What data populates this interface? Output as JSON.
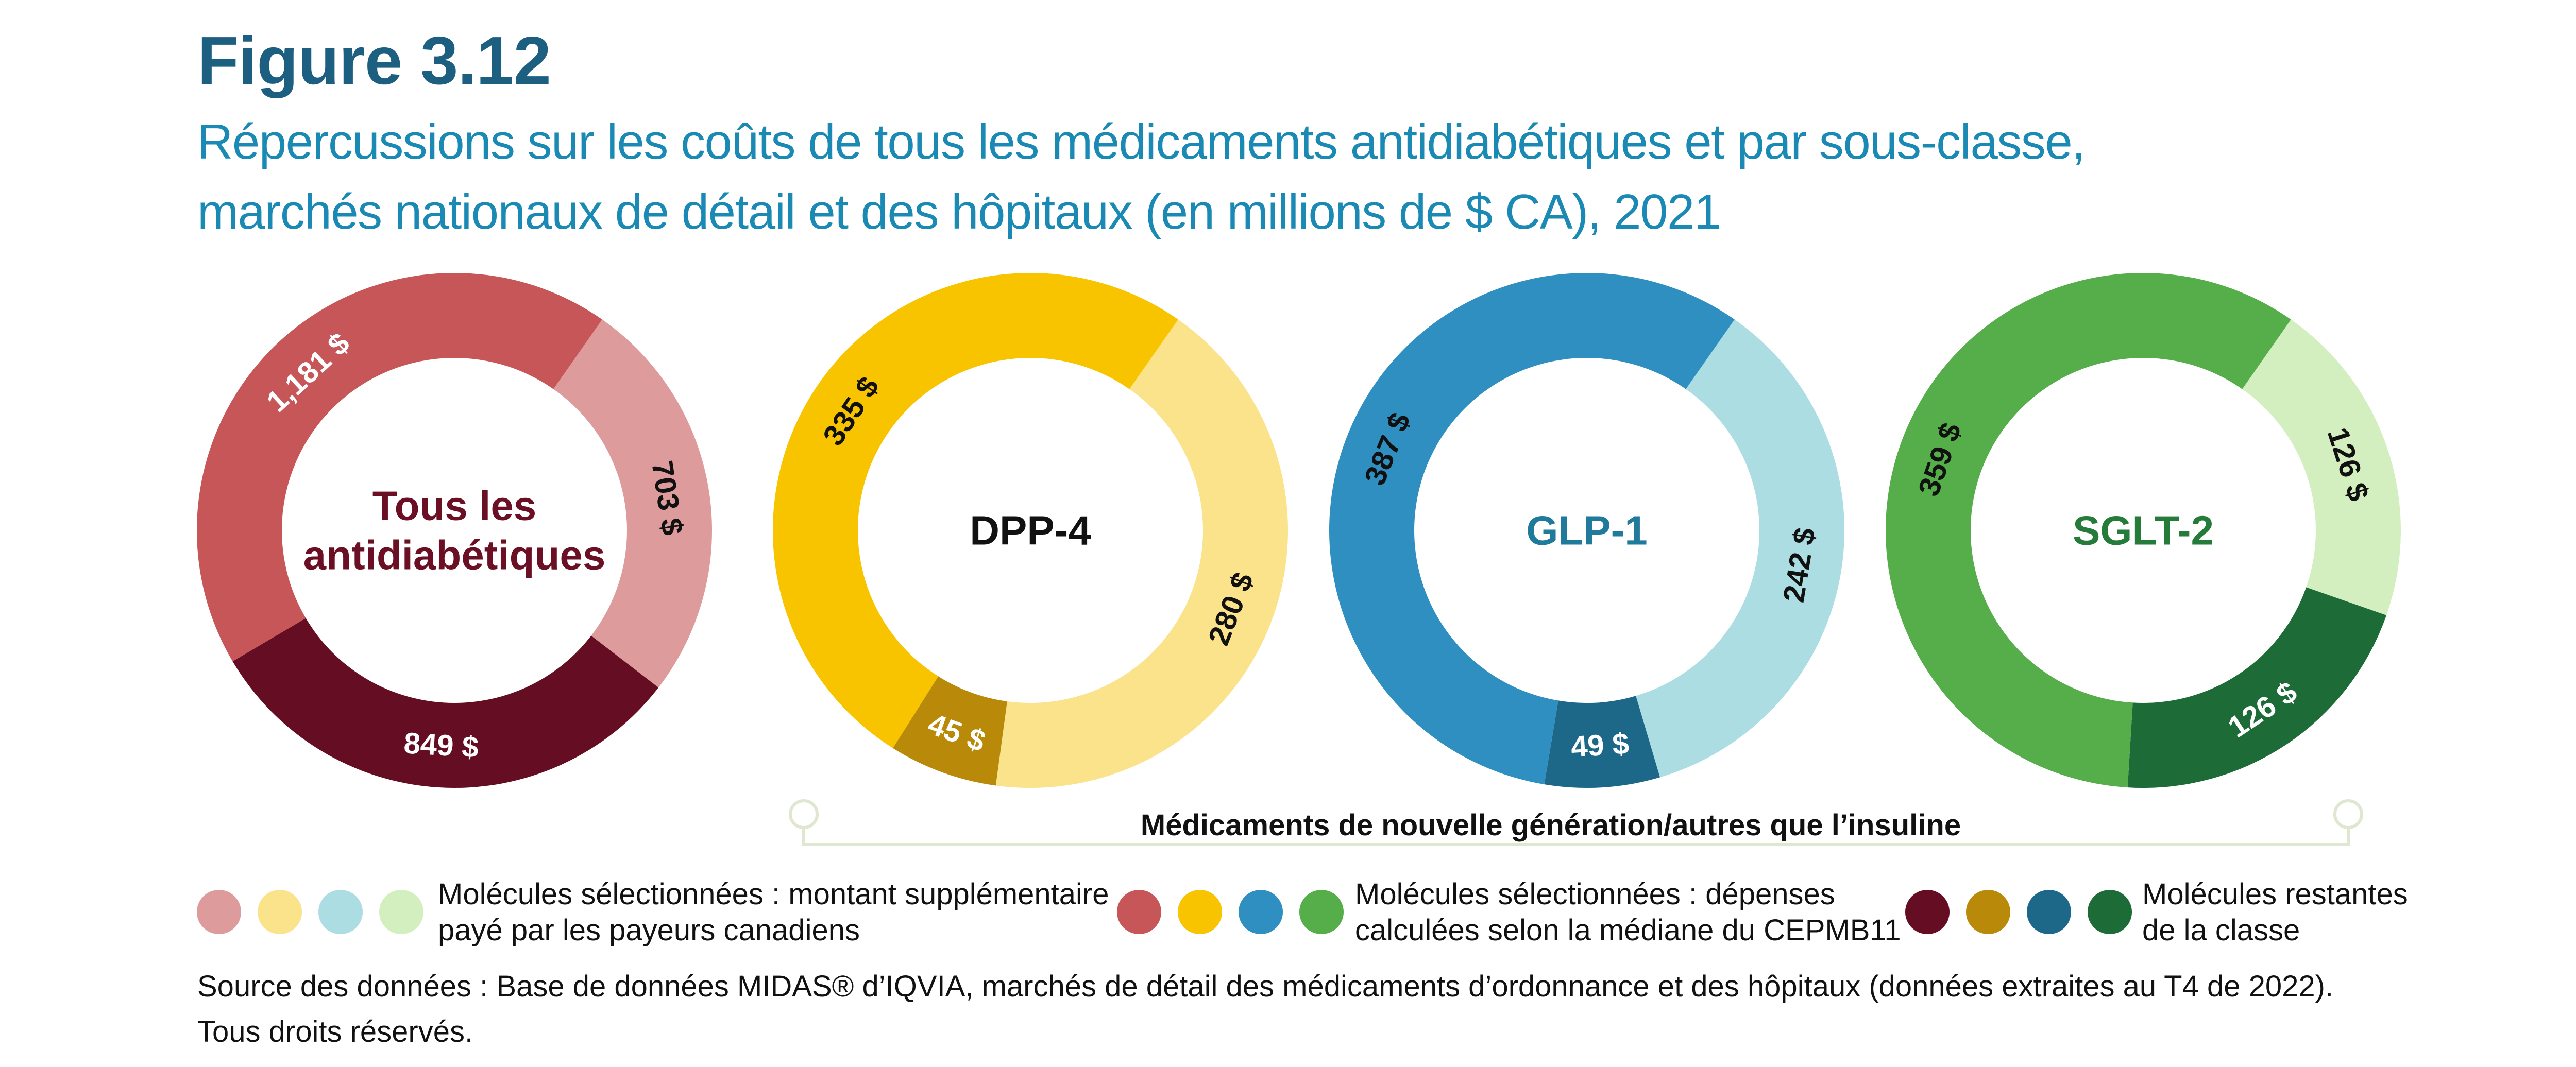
{
  "figure": {
    "label": "Figure 3.12",
    "title_line1": "Répercussions sur les coûts de tous les médicaments antidiabétiques et par sous-classe,",
    "title_line2": "marchés nationaux de détail et des hôpitaux (en millions de $ CA), 2021"
  },
  "chart_data": [
    {
      "type": "donut",
      "center_label": [
        "Tous les",
        "antidiabétiques"
      ],
      "center_color": "#6b0f24",
      "slices": [
        {
          "label": "703 $",
          "value": 703,
          "category": "supplementaire",
          "color": "#dd9b9b"
        },
        {
          "label": "849 $",
          "value": 849,
          "category": "restantes",
          "color": "#650d22"
        },
        {
          "label": "1,181 $",
          "value": 1181,
          "category": "mediane",
          "color": "#c75659"
        }
      ]
    },
    {
      "type": "donut",
      "center_label": [
        "DPP-4"
      ],
      "center_color": "#111111",
      "slices": [
        {
          "label": "280 $",
          "value": 280,
          "category": "supplementaire",
          "color": "#fbe38c"
        },
        {
          "label": "45 $",
          "value": 45,
          "category": "restantes",
          "color": "#b98a0a"
        },
        {
          "label": "335 $",
          "value": 335,
          "category": "mediane",
          "color": "#f8c400"
        }
      ]
    },
    {
      "type": "donut",
      "center_label": [
        "GLP-1"
      ],
      "center_color": "#1f7a9c",
      "slices": [
        {
          "label": "242 $",
          "value": 242,
          "category": "supplementaire",
          "color": "#acdde2"
        },
        {
          "label": "49 $",
          "value": 49,
          "category": "restantes",
          "color": "#1d6889"
        },
        {
          "label": "387 $",
          "value": 387,
          "category": "mediane",
          "color": "#2f8fc0"
        }
      ]
    },
    {
      "type": "donut",
      "center_label": [
        "SGLT-2"
      ],
      "center_color": "#257b3a",
      "slices": [
        {
          "label": "126 $",
          "value": 126,
          "category": "supplementaire",
          "color": "#d4efbf"
        },
        {
          "label": "126 $",
          "value": 126,
          "category": "restantes",
          "color": "#1d6b36"
        },
        {
          "label": "359 $",
          "value": 359,
          "category": "mediane",
          "color": "#55ae4a"
        }
      ]
    }
  ],
  "bracket": {
    "label": "Médicaments de nouvelle génération/autres que l’insuline"
  },
  "legend": [
    {
      "line1": "Molécules sélectionnées : montant supplémentaire",
      "line2": "payé par les payeurs canadiens",
      "colors": [
        "#dd9b9b",
        "#fbe38c",
        "#acdde2",
        "#d4efbf"
      ]
    },
    {
      "line1": "Molécules sélectionnées : dépenses",
      "line2": "calculées selon la médiane du CEPMB11",
      "colors": [
        "#c75659",
        "#f8c400",
        "#2f8fc0",
        "#55ae4a"
      ]
    },
    {
      "line1": "Molécules restantes",
      "line2": "de la classe",
      "colors": [
        "#650d22",
        "#b98a0a",
        "#1d6889",
        "#1d6b36"
      ]
    }
  ],
  "source": {
    "line1": "Source des données : Base de données MIDAS® d’IQVIA, marchés de détail des médicaments d’ordonnance et des hôpitaux (données extraites au T4 de 2022).",
    "line2": "Tous droits réservés."
  }
}
